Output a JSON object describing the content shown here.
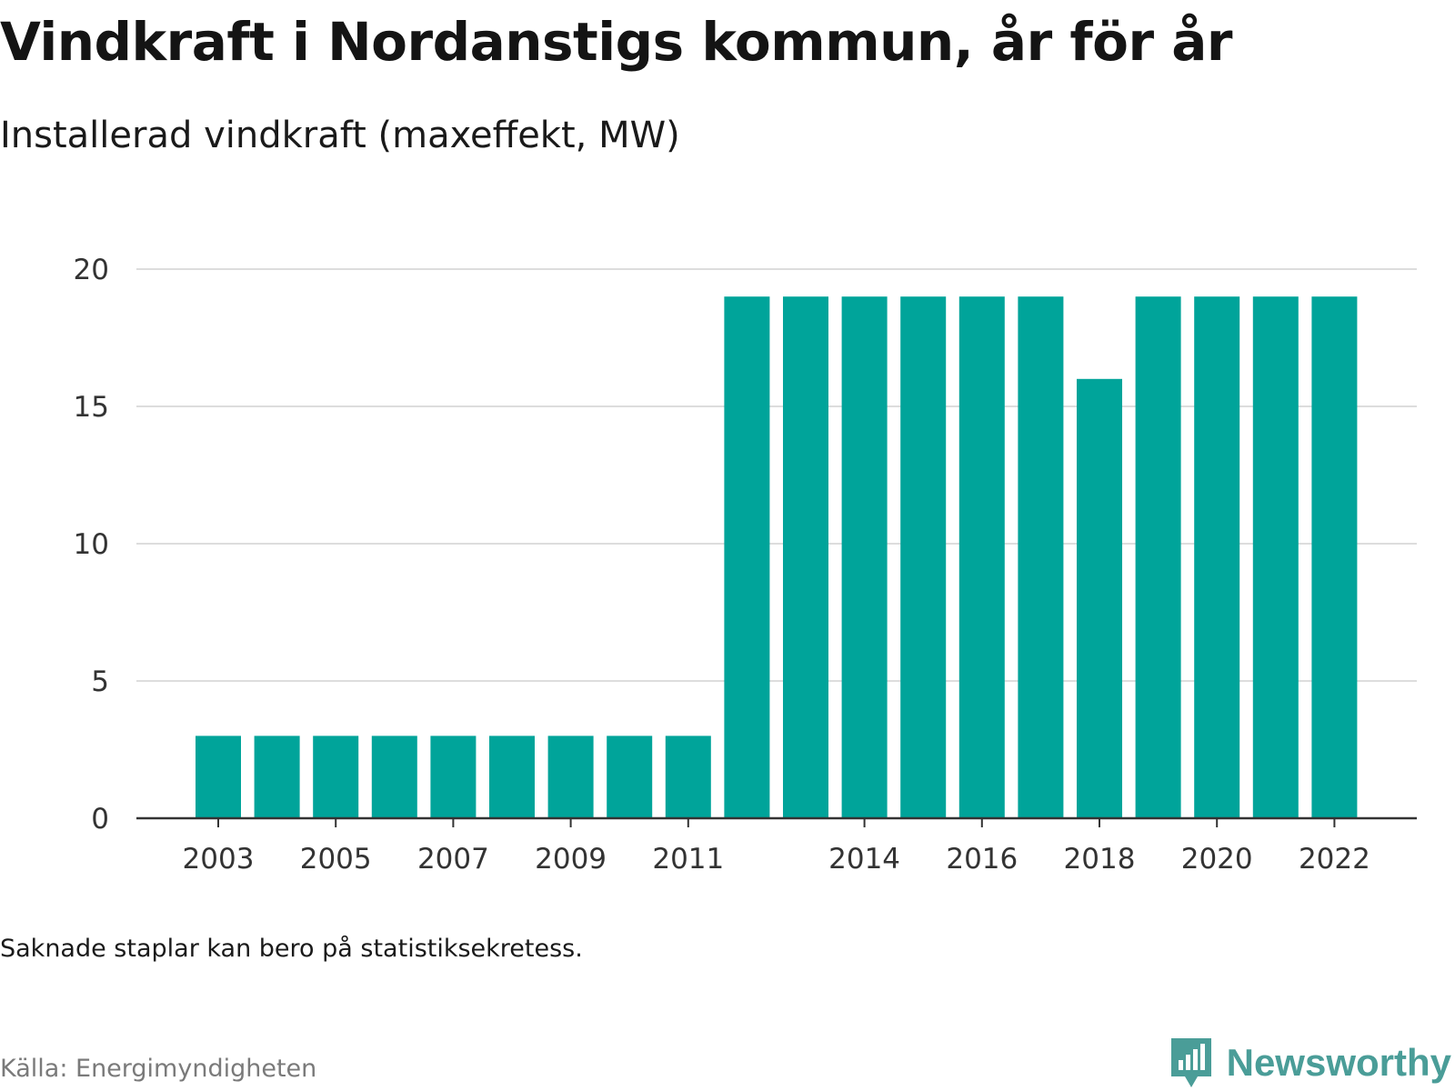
{
  "header": {
    "title": "Vindkraft i Nordanstigs kommun, år för år",
    "subtitle": "Installerad vindkraft (maxeffekt, MW)"
  },
  "footer": {
    "note": "Saknade staplar kan bero på statistiksekretess.",
    "source": "Källa: Energimyndigheten",
    "brand": "Newsworthy"
  },
  "colors": {
    "bar": "#00a49a",
    "grid": "#dddddd",
    "axis": "#333333",
    "brand": "#4a9d98"
  },
  "icons": {
    "brand": "newsworthy-logo-icon"
  },
  "chart_data": {
    "type": "bar",
    "categories": [
      "2003",
      "2004",
      "2005",
      "2006",
      "2007",
      "2008",
      "2009",
      "2010",
      "2011",
      "2012",
      "2013",
      "2014",
      "2015",
      "2016",
      "2017",
      "2018",
      "2019",
      "2020",
      "2021",
      "2022"
    ],
    "values": [
      3,
      3,
      3,
      3,
      3,
      3,
      3,
      3,
      3,
      19,
      19,
      19,
      19,
      19,
      19,
      16,
      19,
      19,
      19,
      19
    ],
    "x_tick_labels": [
      "2003",
      "2005",
      "2007",
      "2009",
      "2011",
      "2014",
      "2016",
      "2018",
      "2020",
      "2022"
    ],
    "y_ticks": [
      0,
      5,
      10,
      15,
      20
    ],
    "ylim": [
      0,
      20
    ],
    "grid": true,
    "legend": false
  }
}
